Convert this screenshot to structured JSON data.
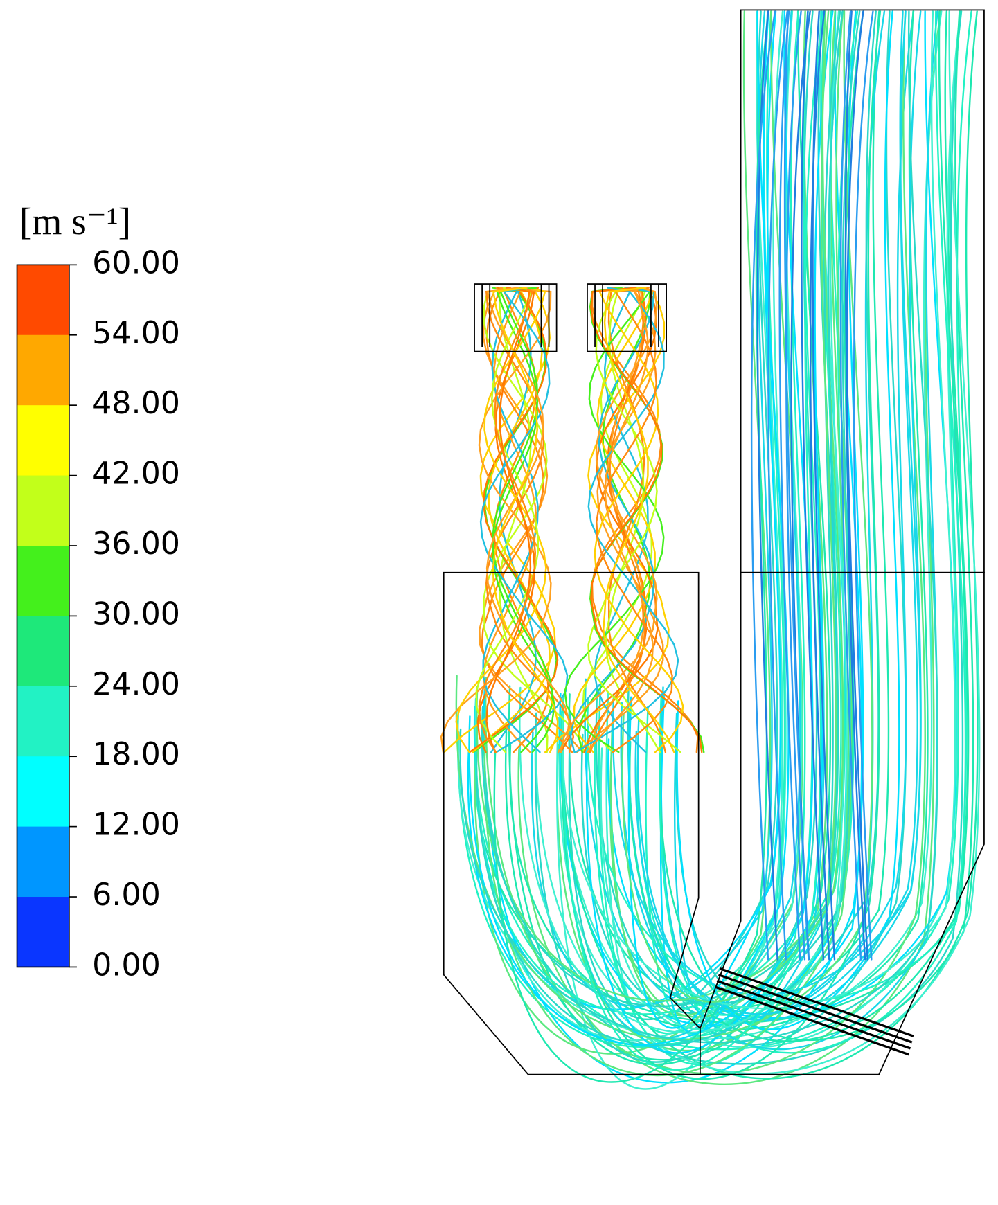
{
  "legend": {
    "unit": "[m s⁻¹]",
    "ticks": [
      "60.00",
      "54.00",
      "48.00",
      "42.00",
      "36.00",
      "30.00",
      "24.00",
      "18.00",
      "12.00",
      "6.00",
      "0.00"
    ],
    "colors": [
      "#ff4a00",
      "#ffa800",
      "#ffff00",
      "#c2ff1a",
      "#44f01c",
      "#1ee87a",
      "#22f2c4",
      "#00ffff",
      "#0096ff",
      "#0a36ff"
    ]
  }
}
